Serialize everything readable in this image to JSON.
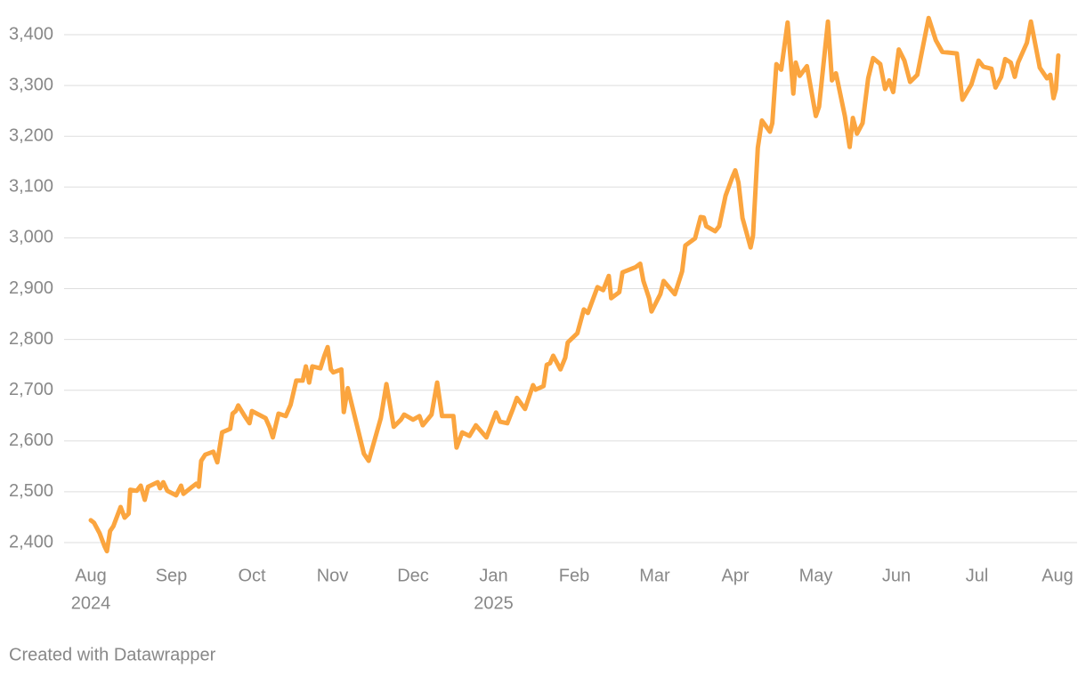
{
  "chart_data": {
    "type": "line",
    "x": [
      0,
      0.04,
      0.11,
      0.17,
      0.2,
      0.24,
      0.28,
      0.37,
      0.42,
      0.47,
      0.49,
      0.57,
      0.62,
      0.67,
      0.71,
      0.83,
      0.86,
      0.9,
      0.95,
      1.06,
      1.12,
      1.15,
      1.26,
      1.31,
      1.34,
      1.37,
      1.42,
      1.52,
      1.57,
      1.63,
      1.73,
      1.76,
      1.8,
      1.83,
      1.91,
      1.97,
      2.0,
      2.17,
      2.22,
      2.26,
      2.33,
      2.42,
      2.48,
      2.55,
      2.63,
      2.67,
      2.71,
      2.75,
      2.85,
      2.9,
      2.94,
      2.98,
      3.01,
      3.11,
      3.14,
      3.19,
      3.39,
      3.45,
      3.6,
      3.67,
      3.76,
      3.85,
      3.89,
      4.0,
      4.08,
      4.12,
      4.23,
      4.3,
      4.36,
      4.5,
      4.54,
      4.61,
      4.7,
      4.78,
      4.91,
      5.03,
      5.08,
      5.17,
      5.24,
      5.29,
      5.39,
      5.49,
      5.52,
      5.62,
      5.66,
      5.7,
      5.74,
      5.83,
      5.89,
      5.92,
      6.04,
      6.12,
      6.17,
      6.29,
      6.36,
      6.43,
      6.46,
      6.56,
      6.6,
      6.76,
      6.82,
      6.86,
      6.93,
      6.96,
      7.07,
      7.11,
      7.17,
      7.25,
      7.34,
      7.38,
      7.5,
      7.57,
      7.61,
      7.64,
      7.75,
      7.8,
      7.88,
      7.96,
      8.0,
      8.04,
      8.09,
      8.19,
      8.22,
      8.28,
      8.33,
      8.43,
      8.46,
      8.51,
      8.57,
      8.65,
      8.72,
      8.75,
      8.8,
      8.89,
      9.0,
      9.04,
      9.15,
      9.2,
      9.25,
      9.36,
      9.42,
      9.46,
      9.51,
      9.58,
      9.65,
      9.71,
      9.8,
      9.86,
      9.91,
      9.96,
      10.03,
      10.1,
      10.17,
      10.26,
      10.4,
      10.49,
      10.57,
      10.75,
      10.82,
      10.93,
      11.02,
      11.08,
      11.18,
      11.23,
      11.3,
      11.35,
      11.42,
      11.47,
      11.51,
      11.62,
      11.67,
      11.78,
      11.87,
      11.91,
      11.95,
      11.98,
      12.01
    ],
    "values": [
      2444,
      2439,
      2418,
      2393,
      2383,
      2423,
      2432,
      2470,
      2449,
      2457,
      2504,
      2502,
      2512,
      2484,
      2510,
      2519,
      2507,
      2519,
      2502,
      2493,
      2512,
      2496,
      2510,
      2516,
      2510,
      2561,
      2573,
      2579,
      2558,
      2617,
      2624,
      2654,
      2659,
      2670,
      2649,
      2635,
      2659,
      2645,
      2627,
      2607,
      2654,
      2649,
      2671,
      2719,
      2719,
      2747,
      2715,
      2747,
      2743,
      2768,
      2785,
      2741,
      2735,
      2741,
      2657,
      2704,
      2575,
      2561,
      2645,
      2712,
      2628,
      2642,
      2652,
      2642,
      2649,
      2631,
      2652,
      2715,
      2649,
      2649,
      2587,
      2617,
      2610,
      2631,
      2607,
      2656,
      2638,
      2635,
      2663,
      2685,
      2663,
      2710,
      2701,
      2708,
      2750,
      2753,
      2768,
      2741,
      2764,
      2794,
      2812,
      2859,
      2852,
      2903,
      2897,
      2925,
      2881,
      2893,
      2932,
      2942,
      2949,
      2915,
      2881,
      2855,
      2889,
      2915,
      2904,
      2889,
      2934,
      2985,
      2999,
      3041,
      3040,
      3023,
      3013,
      3023,
      3083,
      3118,
      3133,
      3109,
      3039,
      2981,
      3004,
      3177,
      3231,
      3209,
      3226,
      3342,
      3331,
      3424,
      3284,
      3345,
      3319,
      3338,
      3240,
      3258,
      3426,
      3310,
      3324,
      3240,
      3179,
      3236,
      3205,
      3226,
      3314,
      3354,
      3342,
      3293,
      3310,
      3287,
      3371,
      3349,
      3307,
      3321,
      3433,
      3389,
      3366,
      3363,
      3272,
      3302,
      3349,
      3337,
      3333,
      3296,
      3317,
      3352,
      3345,
      3317,
      3345,
      3384,
      3426,
      3335,
      3314,
      3321,
      3275,
      3293,
      3359
    ],
    "color": "#fba53f",
    "xlim": [
      0,
      12
    ],
    "xticks": [
      {
        "value": 0,
        "label": "Aug"
      },
      {
        "value": 1,
        "label": "Sep"
      },
      {
        "value": 2,
        "label": "Oct"
      },
      {
        "value": 3,
        "label": "Nov"
      },
      {
        "value": 4,
        "label": "Dec"
      },
      {
        "value": 5,
        "label": "Jan"
      },
      {
        "value": 6,
        "label": "Feb"
      },
      {
        "value": 7,
        "label": "Mar"
      },
      {
        "value": 8,
        "label": "Apr"
      },
      {
        "value": 9,
        "label": "May"
      },
      {
        "value": 10,
        "label": "Jun"
      },
      {
        "value": 11,
        "label": "Jul"
      },
      {
        "value": 12,
        "label": "Aug"
      }
    ],
    "xtick_years": [
      {
        "value": 0,
        "label": "2024"
      },
      {
        "value": 5,
        "label": "2025"
      }
    ],
    "ylim": [
      2360,
      3440
    ],
    "yticks": [
      {
        "value": 2400,
        "label": "2,400"
      },
      {
        "value": 2500,
        "label": "2,500"
      },
      {
        "value": 2600,
        "label": "2,600"
      },
      {
        "value": 2700,
        "label": "2,700"
      },
      {
        "value": 2800,
        "label": "2,800"
      },
      {
        "value": 2900,
        "label": "2,900"
      },
      {
        "value": 3000,
        "label": "3,000"
      },
      {
        "value": 3100,
        "label": "3,100"
      },
      {
        "value": 3200,
        "label": "3,200"
      },
      {
        "value": 3300,
        "label": "3,300"
      },
      {
        "value": 3400,
        "label": "3,400"
      }
    ],
    "grid": true,
    "credit": "Created with Datawrapper"
  }
}
